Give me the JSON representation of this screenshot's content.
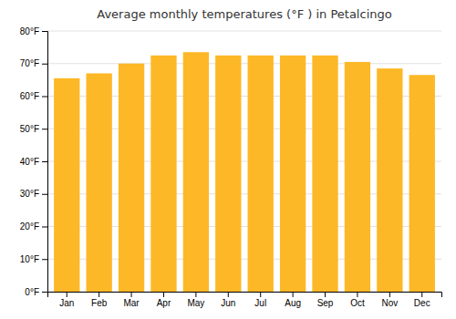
{
  "chart_data": {
    "type": "bar",
    "title": "Average monthly temperatures (°F ) in Petalcingo",
    "categories": [
      "Jan",
      "Feb",
      "Mar",
      "Apr",
      "May",
      "Jun",
      "Jul",
      "Aug",
      "Sep",
      "Oct",
      "Nov",
      "Dec"
    ],
    "values": [
      65.5,
      67.0,
      70.0,
      72.5,
      73.5,
      72.5,
      72.5,
      72.5,
      72.5,
      70.5,
      68.5,
      66.5
    ],
    "color": "#FDB827",
    "ylim": [
      0,
      80
    ],
    "yticks": [
      {
        "value": 0,
        "label": "0°F"
      },
      {
        "value": 10,
        "label": "10°F"
      },
      {
        "value": 20,
        "label": "20°F"
      },
      {
        "value": 30,
        "label": "30°F"
      },
      {
        "value": 40,
        "label": "40°F"
      },
      {
        "value": 50,
        "label": "50°F"
      },
      {
        "value": 60,
        "label": "60°F"
      },
      {
        "value": 70,
        "label": "70°F"
      },
      {
        "value": 80,
        "label": "80°F"
      }
    ],
    "grid": true
  }
}
